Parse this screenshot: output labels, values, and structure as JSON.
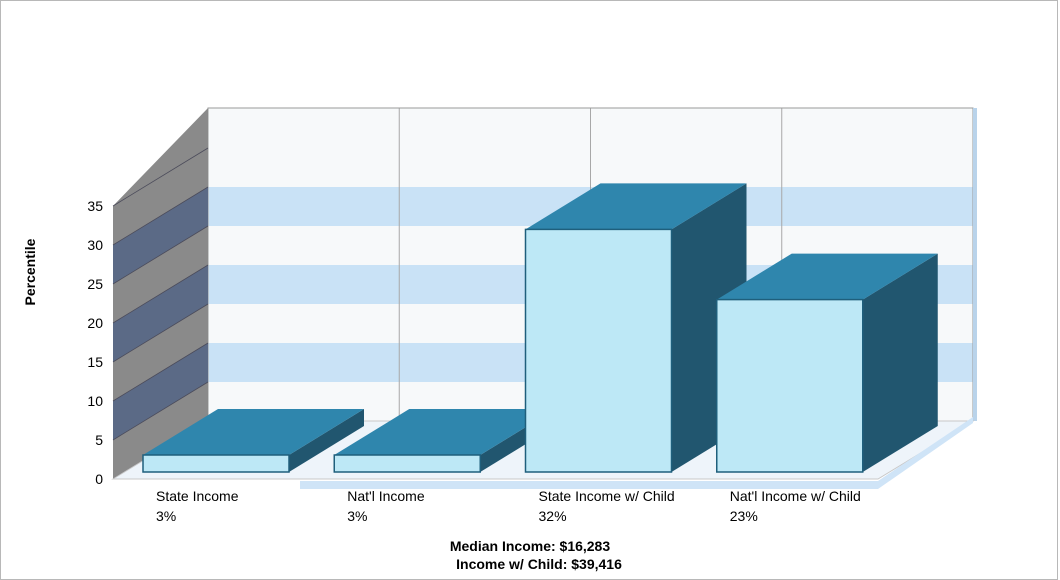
{
  "chart_data": {
    "type": "bar",
    "categories": [
      "State Income",
      "Nat'l Income",
      "State Income w/ Child",
      "Nat'l Income w/ Child"
    ],
    "value_labels": [
      "3%",
      "3%",
      "32%",
      "23%"
    ],
    "values": [
      3,
      3,
      32,
      23
    ],
    "ylabel": "Percentile",
    "ylim": [
      0,
      35
    ],
    "yticks": [
      0,
      5,
      10,
      15,
      20,
      25,
      30,
      35
    ],
    "grid": true,
    "colors": {
      "bar_front": "#bde8f6",
      "bar_top": "#2f86ad",
      "bar_side": "#21566f",
      "band_blue": "#c9e2f6",
      "band_white": "#f7f9fa",
      "side_wall_dark": "#5b6a86",
      "side_wall_grey": "#8a8a8a",
      "floor": "#cfe4f7"
    }
  },
  "footer": {
    "median_income": "Median Income: $16,283",
    "income_with_child": "Income w/ Child: $39,416"
  }
}
